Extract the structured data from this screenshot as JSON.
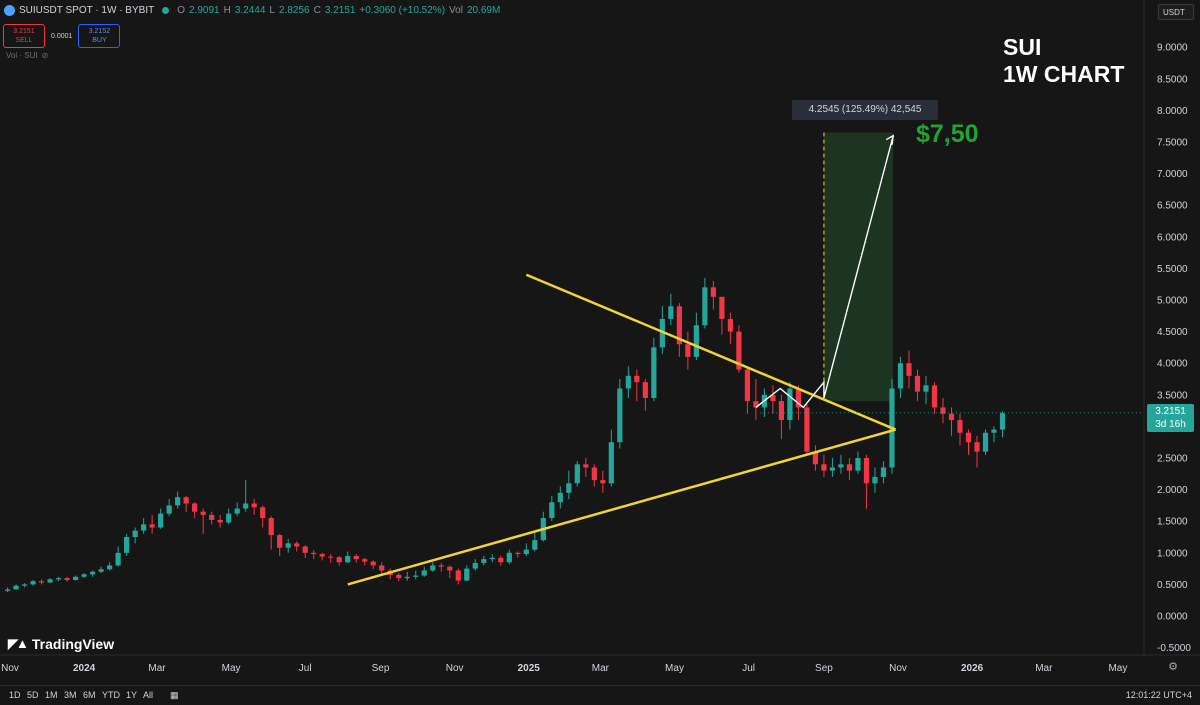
{
  "header": {
    "title": "SUIUSDT SPOT · 1W · BYBIT",
    "open_label": "O",
    "open": "2.9091",
    "high_label": "H",
    "high": "3.2444",
    "low_label": "L",
    "low": "2.8256",
    "close_label": "C",
    "close": "3.2151",
    "change": "+0.3060 (+10.52%)",
    "vol_label": "Vol",
    "vol": "20.69M"
  },
  "trade": {
    "sell_price": "3.2151",
    "sell_label": "SELL",
    "spread": "0.0001",
    "buy_price": "3.2152",
    "buy_label": "BUY"
  },
  "volume_label": "Vol · SUI",
  "currency_selector": "USDT",
  "annotation": {
    "title_line1": "SUI",
    "title_line2": "1W CHART",
    "target": "$7,50",
    "measure": "4.2545 (125.49%) 42,545"
  },
  "last_price": {
    "price": "3.2151",
    "countdown": "3d 16h"
  },
  "logo_text": "TradingView",
  "timeframes": [
    "1D",
    "5D",
    "1M",
    "3M",
    "6M",
    "YTD",
    "1Y",
    "All"
  ],
  "clock": "12:01:22 UTC+4",
  "colors": {
    "up": "#26a69a",
    "down": "#f23645",
    "trendline": "#f2d335",
    "target": "#22a32d",
    "background": "#161616"
  },
  "chart_data": {
    "type": "candlestick",
    "y_ticks": [
      "9.0000",
      "8.5000",
      "8.0000",
      "7.5000",
      "7.0000",
      "6.5000",
      "6.0000",
      "5.5000",
      "5.0000",
      "4.5000",
      "4.0000",
      "3.5000",
      "3.0000",
      "2.5000",
      "2.0000",
      "1.5000",
      "1.0000",
      "0.5000",
      "0.0000",
      "-0.5000"
    ],
    "ylim": [
      -0.5,
      9.0
    ],
    "x_ticks": [
      "Nov",
      "2024",
      "Mar",
      "May",
      "Jul",
      "Sep",
      "Nov",
      "2025",
      "Mar",
      "May",
      "Jul",
      "Sep",
      "Nov",
      "2026",
      "Mar",
      "May"
    ],
    "x_tick_dates": [
      "2023-11-01",
      "2024-01-01",
      "2024-03-01",
      "2024-05-01",
      "2024-07-01",
      "2024-09-01",
      "2024-11-01",
      "2025-01-01",
      "2025-03-01",
      "2025-05-01",
      "2025-07-01",
      "2025-09-01",
      "2025-11-01",
      "2026-01-01",
      "2026-03-01",
      "2026-05-01"
    ],
    "xlim": [
      "2023-11-01",
      "2026-05-20"
    ],
    "closes": [
      0.42,
      0.48,
      0.5,
      0.55,
      0.53,
      0.58,
      0.6,
      0.57,
      0.62,
      0.66,
      0.7,
      0.74,
      0.8,
      1.0,
      1.25,
      1.35,
      1.45,
      1.4,
      1.62,
      1.75,
      1.88,
      1.78,
      1.65,
      1.6,
      1.52,
      1.48,
      1.62,
      1.7,
      1.78,
      1.72,
      1.55,
      1.28,
      1.08,
      1.15,
      1.1,
      1.0,
      0.98,
      0.94,
      0.93,
      0.85,
      0.95,
      0.9,
      0.86,
      0.8,
      0.72,
      0.65,
      0.6,
      0.62,
      0.64,
      0.72,
      0.8,
      0.78,
      0.72,
      0.56,
      0.75,
      0.84,
      0.9,
      0.92,
      0.85,
      1.0,
      0.98,
      1.05,
      1.2,
      1.55,
      1.8,
      1.95,
      2.1,
      2.4,
      2.35,
      2.15,
      2.1,
      2.75,
      3.6,
      3.8,
      3.7,
      3.45,
      4.25,
      4.7,
      4.9,
      4.3,
      4.1,
      4.6,
      5.2,
      5.05,
      4.7,
      4.5,
      3.9,
      3.4,
      3.3,
      3.5,
      3.4,
      3.1,
      3.6,
      3.3,
      2.6,
      2.4,
      2.3,
      2.35,
      2.4,
      2.3,
      2.5,
      2.1,
      2.2,
      2.35,
      3.6,
      4.0,
      3.8,
      3.55,
      3.65,
      3.3,
      3.2,
      3.1,
      2.9,
      2.75,
      2.6,
      2.9,
      2.95,
      3.21
    ],
    "highs": [
      0.45,
      0.5,
      0.52,
      0.57,
      0.58,
      0.6,
      0.62,
      0.62,
      0.64,
      0.68,
      0.72,
      0.78,
      0.85,
      1.1,
      1.3,
      1.4,
      1.55,
      1.6,
      1.7,
      1.85,
      1.97,
      1.9,
      1.8,
      1.7,
      1.65,
      1.6,
      1.7,
      1.8,
      2.15,
      1.85,
      1.75,
      1.58,
      1.3,
      1.22,
      1.18,
      1.12,
      1.04,
      1.0,
      0.98,
      0.95,
      1.02,
      0.98,
      0.92,
      0.88,
      0.85,
      0.75,
      0.68,
      0.7,
      0.72,
      0.78,
      0.85,
      0.84,
      0.8,
      0.75,
      0.8,
      0.9,
      0.95,
      0.98,
      0.95,
      1.05,
      1.02,
      1.15,
      1.35,
      1.65,
      1.9,
      2.05,
      2.3,
      2.45,
      2.5,
      2.4,
      2.3,
      2.95,
      3.75,
      3.95,
      3.9,
      3.75,
      4.4,
      4.9,
      5.1,
      4.95,
      4.5,
      4.8,
      5.35,
      5.3,
      5.05,
      4.8,
      4.6,
      3.95,
      3.75,
      3.6,
      3.65,
      3.5,
      3.7,
      3.65,
      3.35,
      2.7,
      2.55,
      2.5,
      2.55,
      2.5,
      2.6,
      2.55,
      2.35,
      2.45,
      3.75,
      4.1,
      4.2,
      3.9,
      3.8,
      3.7,
      3.45,
      3.3,
      3.2,
      2.95,
      2.85,
      2.95,
      3.0,
      3.24
    ],
    "lows": [
      0.38,
      0.42,
      0.45,
      0.48,
      0.5,
      0.52,
      0.55,
      0.54,
      0.56,
      0.6,
      0.62,
      0.68,
      0.72,
      0.78,
      0.95,
      1.15,
      1.3,
      1.3,
      1.38,
      1.58,
      1.7,
      1.65,
      1.55,
      1.3,
      1.45,
      1.4,
      1.45,
      1.58,
      1.65,
      1.6,
      1.4,
      1.05,
      0.95,
      1.0,
      1.02,
      0.92,
      0.9,
      0.88,
      0.84,
      0.8,
      0.84,
      0.84,
      0.8,
      0.74,
      0.65,
      0.58,
      0.55,
      0.56,
      0.58,
      0.62,
      0.7,
      0.7,
      0.6,
      0.5,
      0.55,
      0.72,
      0.8,
      0.85,
      0.8,
      0.82,
      0.92,
      0.95,
      1.02,
      1.18,
      1.5,
      1.7,
      1.85,
      2.05,
      2.2,
      2.05,
      1.95,
      2.05,
      2.65,
      3.45,
      3.4,
      3.25,
      3.4,
      4.15,
      4.6,
      4.1,
      3.9,
      4.05,
      4.55,
      4.85,
      4.45,
      4.3,
      3.85,
      3.2,
      3.1,
      3.15,
      3.2,
      2.8,
      2.95,
      3.1,
      2.55,
      2.3,
      2.2,
      2.2,
      2.25,
      2.15,
      2.25,
      1.7,
      1.95,
      2.1,
      2.25,
      3.45,
      3.6,
      3.4,
      3.35,
      3.2,
      3.05,
      2.85,
      2.7,
      2.55,
      2.35,
      2.55,
      2.75,
      2.83
    ],
    "trendline_upper": {
      "from": [
        "2024-12-30",
        5.4
      ],
      "to": [
        "2025-10-30",
        2.95
      ]
    },
    "trendline_lower": {
      "from": [
        "2024-08-05",
        0.5
      ],
      "to": [
        "2025-10-30",
        2.95
      ]
    },
    "projection_path": [
      [
        "2025-07-07",
        3.3
      ],
      [
        "2025-07-27",
        3.6
      ],
      [
        "2025-08-15",
        3.3
      ],
      [
        "2025-09-01",
        3.7
      ],
      [
        "2025-09-01",
        3.45
      ],
      [
        "2025-10-28",
        7.6
      ]
    ],
    "target_zone": {
      "from_date": "2025-09-01",
      "to_date": "2025-10-28",
      "low": 3.4,
      "high": 7.65
    }
  }
}
